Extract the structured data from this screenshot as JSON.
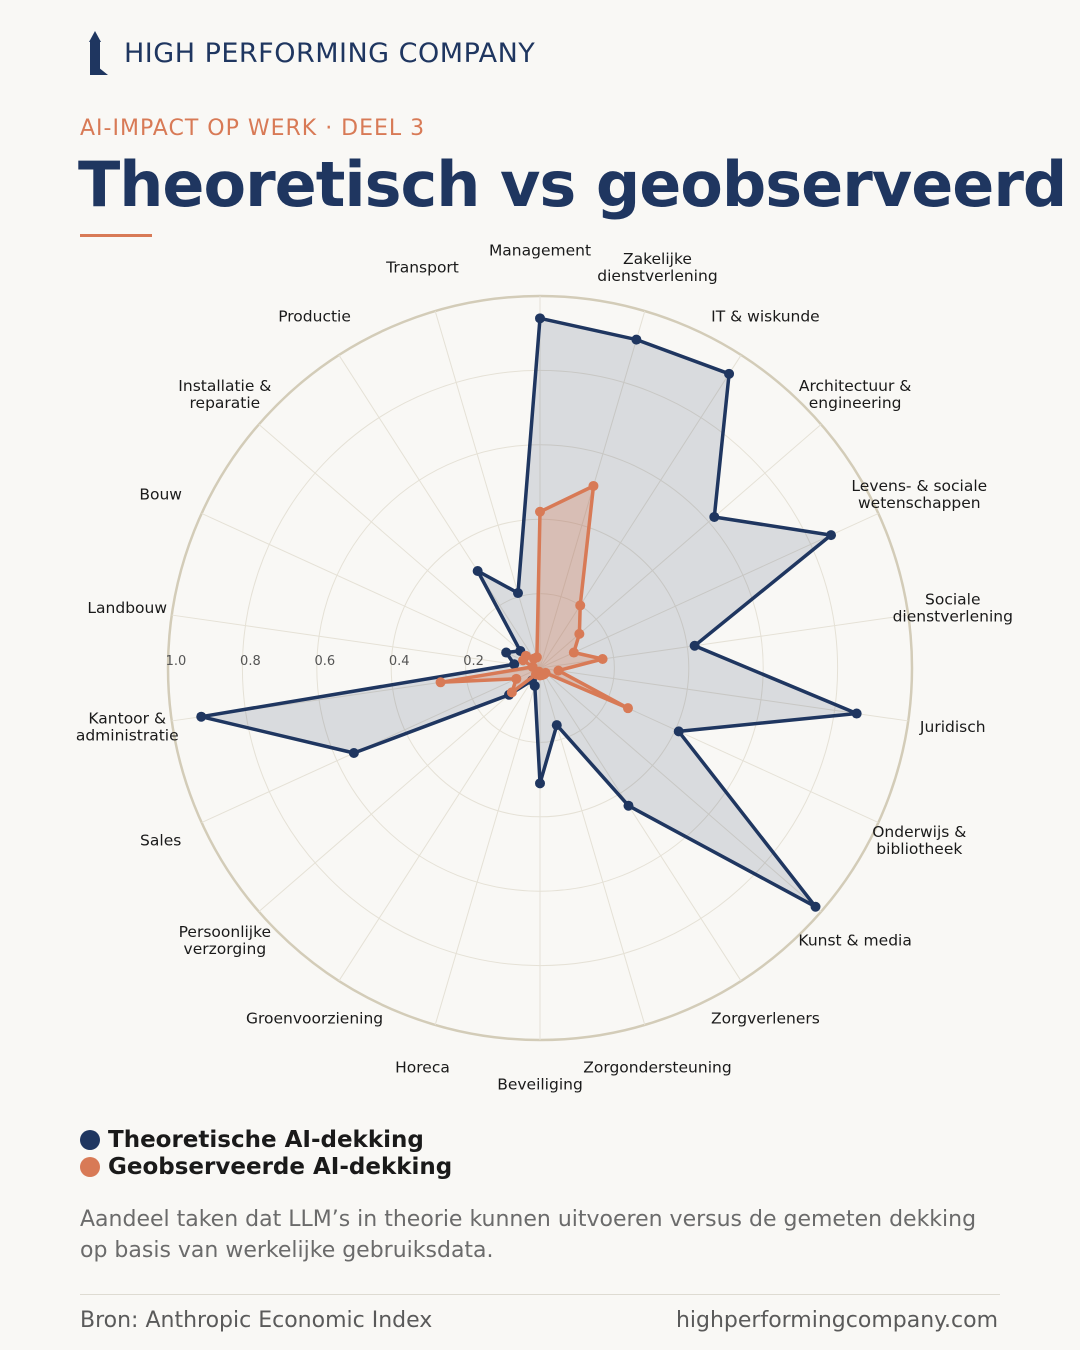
{
  "header": {
    "brand": "HIGH PERFORMING COMPANY",
    "brand_icon": "lighthouse-icon",
    "kicker": "AI-IMPACT OP WERK · DEEL 3",
    "title": "Theoretisch vs geobserveerd"
  },
  "colors": {
    "navy": "#1f3660",
    "orange": "#d87a56",
    "ring": "#d3ccb8",
    "background": "#f9f8f5"
  },
  "chart_data": {
    "type": "radar",
    "title": "",
    "rlim": [
      0,
      1
    ],
    "r_ticks": [
      {
        "value": 0.2,
        "label": "0.2"
      },
      {
        "value": 0.4,
        "label": "0.4"
      },
      {
        "value": 0.6,
        "label": "0.6"
      },
      {
        "value": 0.8,
        "label": "0.8"
      },
      {
        "value": 1.0,
        "label": "1.0"
      }
    ],
    "grid": true,
    "legend_position": "bottom-left",
    "categories": [
      [
        "Management"
      ],
      [
        "Zakelijke",
        "dienstverlening"
      ],
      [
        "IT & wiskunde"
      ],
      [
        "Architectuur &",
        "engineering"
      ],
      [
        "Levens- & sociale",
        "wetenschappen"
      ],
      [
        "Sociale",
        "dienstverlening"
      ],
      [
        "Juridisch"
      ],
      [
        "Onderwijs &",
        "bibliotheek"
      ],
      [
        "Kunst & media"
      ],
      [
        "Zorgverleners"
      ],
      [
        "Zorgondersteuning"
      ],
      [
        "Beveiliging"
      ],
      [
        "Horeca"
      ],
      [
        "Groenvoorziening"
      ],
      [
        "Persoonlijke",
        "verzorging"
      ],
      [
        "Sales"
      ],
      [
        "Kantoor &",
        "administratie"
      ],
      [
        "Landbouw"
      ],
      [
        "Bouw"
      ],
      [
        "Installatie &",
        "reparatie"
      ],
      [
        "Productie"
      ],
      [
        "Transport"
      ]
    ],
    "series": [
      {
        "name": "Theoretische AI-dekking",
        "color": "#1f3660",
        "values": [
          0.94,
          0.92,
          0.94,
          0.62,
          0.86,
          0.42,
          0.86,
          0.41,
          0.98,
          0.44,
          0.16,
          0.31,
          0.05,
          0.04,
          0.11,
          0.55,
          0.92,
          0.07,
          0.1,
          0.07,
          0.31,
          0.21
        ]
      },
      {
        "name": "Geobserveerde AI-dekking",
        "color": "#d87a56",
        "values": [
          0.42,
          0.51,
          0.2,
          0.14,
          0.1,
          0.17,
          0.05,
          0.26,
          0.02,
          0.02,
          0.02,
          0.02,
          0.01,
          0.02,
          0.1,
          0.07,
          0.27,
          0.02,
          0.05,
          0.05,
          0.03,
          0.03
        ]
      }
    ]
  },
  "legend": {
    "theoretical": "Theoretische AI-dekking",
    "observed": "Geobserveerde AI-dekking"
  },
  "description": "Aandeel taken dat LLM’s in theorie kunnen uitvoeren versus de gemeten dekking op basis van werkelijke gebruiksdata.",
  "footer": {
    "source": "Bron: Anthropic Economic Index",
    "website": "highperformingcompany.com"
  }
}
